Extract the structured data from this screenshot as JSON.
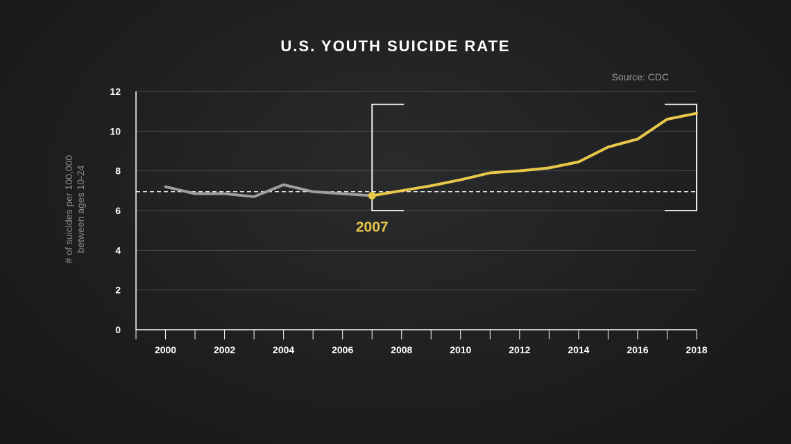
{
  "title": "U.S. YOUTH SUICIDE RATE",
  "source": "Source: CDC",
  "ylabel_line1": "# of suicides per 100,000",
  "ylabel_line2": "between ages 10-24",
  "annotation": "2007",
  "colors": {
    "before": "#9d9e9f",
    "after": "#e8c84a",
    "axis": "#ffffff",
    "grid": "#4a4b4c",
    "reference": "#ffffff"
  },
  "chart_data": {
    "type": "line",
    "x_ticks": [
      "2000",
      "2002",
      "2004",
      "2006",
      "2008",
      "2010",
      "2012",
      "2014",
      "2016",
      "2018"
    ],
    "y_ticks": [
      "0",
      "2",
      "4",
      "6",
      "8",
      "10",
      "12"
    ],
    "xlim": [
      1999,
      2018
    ],
    "ylim": [
      0,
      12
    ],
    "grid": true,
    "reference_line": 6.95,
    "highlight_point": {
      "x": 2007,
      "y": 6.75
    },
    "series": [
      {
        "x": [
          2000,
          2001,
          2002,
          2003,
          2004,
          2005,
          2006,
          2007
        ],
        "values": [
          7.2,
          6.85,
          6.85,
          6.7,
          7.3,
          6.95,
          6.85,
          6.75
        ]
      },
      {
        "x": [
          2007,
          2008,
          2009,
          2010,
          2011,
          2012,
          2013,
          2014,
          2015,
          2016,
          2017,
          2018
        ],
        "values": [
          6.75,
          7.0,
          7.25,
          7.55,
          7.9,
          8.0,
          8.15,
          8.45,
          9.2,
          9.6,
          10.6,
          10.9
        ]
      }
    ]
  }
}
